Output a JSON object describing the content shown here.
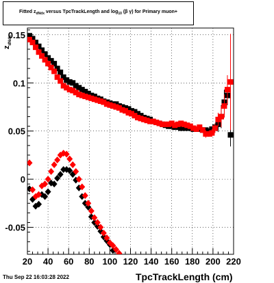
{
  "title": {
    "prefix": "Fitted  z",
    "sub1": "dNdx",
    "mid": " versus TpcTrackLength and log",
    "sub2": "10",
    "suffix": " (β γ) for Primary muon+"
  },
  "y_title": {
    "main": "z",
    "sub": "dNdx"
  },
  "x_title": "TpcTrackLength (cm)",
  "date_stamp": "Thu Sep 22 16:03:28 2022",
  "colors": {
    "black_series": "#000000",
    "red_series": "#ff0000"
  },
  "chart_data": {
    "type": "scatter",
    "xlim": [
      20,
      220
    ],
    "ylim": [
      -0.078,
      0.157
    ],
    "grid": true,
    "x_ticks": [
      20,
      40,
      60,
      80,
      100,
      120,
      140,
      160,
      180,
      200,
      220
    ],
    "x_tick_labels": [
      "20",
      "40",
      "60",
      "80",
      "100",
      "120",
      "140",
      "160",
      "180",
      "200",
      "220"
    ],
    "y_ticks": [
      0.15,
      0.1,
      0.05,
      0,
      -0.05
    ],
    "y_tick_labels": [
      "0.15",
      "0.1",
      "0.05",
      "0",
      "-0.05"
    ],
    "series": [
      {
        "marker": "square",
        "color": "#000000",
        "points": [
          [
            22,
            0.149
          ],
          [
            25,
            0.146
          ],
          [
            28,
            0.142
          ],
          [
            31,
            0.138
          ],
          [
            34,
            0.134
          ],
          [
            37,
            0.13
          ],
          [
            40,
            0.126
          ],
          [
            43,
            0.123
          ],
          [
            46,
            0.12
          ],
          [
            49,
            0.115
          ],
          [
            52,
            0.111
          ],
          [
            55,
            0.106
          ],
          [
            58,
            0.103
          ],
          [
            61,
            0.101
          ],
          [
            64,
            0.1
          ],
          [
            67,
            0.097
          ],
          [
            70,
            0.095
          ],
          [
            73,
            0.093
          ],
          [
            76,
            0.091
          ],
          [
            79,
            0.089
          ],
          [
            82,
            0.087
          ],
          [
            85,
            0.086
          ],
          [
            88,
            0.084
          ],
          [
            91,
            0.083
          ],
          [
            94,
            0.081
          ],
          [
            97,
            0.08
          ],
          [
            100,
            0.079
          ],
          [
            103,
            0.078
          ],
          [
            106,
            0.078
          ],
          [
            109,
            0.076
          ],
          [
            112,
            0.075
          ],
          [
            115,
            0.074
          ],
          [
            118,
            0.073
          ],
          [
            121,
            0.071
          ],
          [
            124,
            0.07
          ],
          [
            127,
            0.068
          ],
          [
            130,
            0.066
          ],
          [
            133,
            0.064
          ],
          [
            136,
            0.063
          ],
          [
            139,
            0.062
          ],
          [
            142,
            0.06
          ],
          [
            145,
            0.059
          ],
          [
            148,
            0.058
          ],
          [
            151,
            0.057
          ],
          [
            154,
            0.056
          ],
          [
            157,
            0.055
          ],
          [
            160,
            0.055
          ],
          [
            163,
            0.054
          ],
          [
            166,
            0.054
          ],
          [
            169,
            0.053
          ],
          [
            172,
            0.053
          ],
          [
            175,
            0.053
          ],
          [
            178,
            0.053
          ],
          [
            181,
            0.052
          ],
          [
            184,
            0.052
          ],
          [
            187,
            0.052
          ],
          [
            190,
            0.051
          ],
          [
            193,
            0.051
          ],
          [
            196,
            0.05
          ],
          [
            199,
            0.052
          ],
          [
            202,
            0.054
          ],
          [
            205,
            0.057
          ],
          [
            208,
            0.065
          ],
          [
            211,
            0.08
          ],
          [
            214,
            0.087
          ],
          [
            217,
            0.046
          ]
        ],
        "errors": [
          [
            202,
            0.004
          ],
          [
            205,
            0.008
          ],
          [
            208,
            0.012
          ],
          [
            211,
            0.013
          ],
          [
            214,
            0.01
          ],
          [
            217,
            0.012
          ]
        ]
      },
      {
        "marker": "square",
        "color": "#ff0000",
        "points": [
          [
            22,
            0.145
          ],
          [
            25,
            0.142
          ],
          [
            28,
            0.137
          ],
          [
            31,
            0.132
          ],
          [
            34,
            0.128
          ],
          [
            37,
            0.124
          ],
          [
            40,
            0.12
          ],
          [
            43,
            0.116
          ],
          [
            46,
            0.112
          ],
          [
            49,
            0.106
          ],
          [
            52,
            0.102
          ],
          [
            55,
            0.097
          ],
          [
            58,
            0.095
          ],
          [
            61,
            0.093
          ],
          [
            64,
            0.092
          ],
          [
            67,
            0.09
          ],
          [
            70,
            0.088
          ],
          [
            73,
            0.087
          ],
          [
            76,
            0.086
          ],
          [
            79,
            0.085
          ],
          [
            82,
            0.084
          ],
          [
            85,
            0.083
          ],
          [
            88,
            0.082
          ],
          [
            91,
            0.081
          ],
          [
            94,
            0.08
          ],
          [
            97,
            0.078
          ],
          [
            100,
            0.077
          ],
          [
            103,
            0.076
          ],
          [
            106,
            0.075
          ],
          [
            109,
            0.074
          ],
          [
            112,
            0.072
          ],
          [
            115,
            0.071
          ],
          [
            118,
            0.069
          ],
          [
            121,
            0.068
          ],
          [
            124,
            0.066
          ],
          [
            127,
            0.064
          ],
          [
            130,
            0.063
          ],
          [
            133,
            0.062
          ],
          [
            136,
            0.061
          ],
          [
            139,
            0.06
          ],
          [
            142,
            0.06
          ],
          [
            145,
            0.059
          ],
          [
            148,
            0.058
          ],
          [
            151,
            0.057
          ],
          [
            154,
            0.057
          ],
          [
            157,
            0.057
          ],
          [
            160,
            0.058
          ],
          [
            163,
            0.056
          ],
          [
            166,
            0.057
          ],
          [
            169,
            0.058
          ],
          [
            172,
            0.057
          ],
          [
            175,
            0.056
          ],
          [
            178,
            0.055
          ],
          [
            181,
            0.053
          ],
          [
            184,
            0.052
          ],
          [
            187,
            0.054
          ],
          [
            190,
            0.051
          ],
          [
            193,
            0.047
          ],
          [
            196,
            0.047
          ],
          [
            199,
            0.048
          ],
          [
            202,
            0.053
          ],
          [
            205,
            0.062
          ],
          [
            208,
            0.065
          ],
          [
            211,
            0.076
          ],
          [
            214,
            0.093
          ],
          [
            217,
            0.101
          ]
        ],
        "errors": [
          [
            190,
            0.003
          ],
          [
            193,
            0.004
          ],
          [
            196,
            0.003
          ],
          [
            199,
            0.004
          ],
          [
            202,
            0.005
          ],
          [
            205,
            0.007
          ],
          [
            208,
            0.011
          ],
          [
            211,
            0.012
          ],
          [
            214,
            0.015
          ],
          [
            217,
            0.05
          ]
        ]
      },
      {
        "marker": "diamond",
        "color": "#000000",
        "points": [
          [
            22,
            -0.01
          ],
          [
            25,
            -0.021
          ],
          [
            28,
            -0.028
          ],
          [
            31,
            -0.026
          ],
          [
            34,
            -0.016
          ],
          [
            37,
            -0.018
          ],
          [
            40,
            -0.013
          ],
          [
            43,
            -0.004
          ],
          [
            46,
            -0.005
          ],
          [
            49,
            0.001
          ],
          [
            52,
            0.005
          ],
          [
            55,
            0.01
          ],
          [
            58,
            0.01
          ],
          [
            61,
            0.009
          ],
          [
            64,
            0.005
          ],
          [
            67,
            -0.001
          ],
          [
            70,
            -0.009
          ],
          [
            73,
            -0.018
          ],
          [
            76,
            -0.025
          ],
          [
            79,
            -0.029
          ],
          [
            82,
            -0.039
          ],
          [
            85,
            -0.045
          ],
          [
            88,
            -0.049
          ],
          [
            91,
            -0.054
          ],
          [
            94,
            -0.06
          ],
          [
            97,
            -0.064
          ],
          [
            100,
            -0.068
          ],
          [
            103,
            -0.074
          ]
        ]
      },
      {
        "marker": "diamond",
        "color": "#ff0000",
        "points": [
          [
            22,
            0.017
          ],
          [
            25,
            -0.011
          ],
          [
            28,
            -0.018
          ],
          [
            31,
            -0.016
          ],
          [
            34,
            -0.007
          ],
          [
            37,
            -0.005
          ],
          [
            40,
            0.0
          ],
          [
            43,
            0.008
          ],
          [
            46,
            0.015
          ],
          [
            49,
            0.02
          ],
          [
            52,
            0.025
          ],
          [
            55,
            0.027
          ],
          [
            58,
            0.026
          ],
          [
            61,
            0.021
          ],
          [
            64,
            0.015
          ],
          [
            67,
            0.008
          ],
          [
            70,
            0.0
          ],
          [
            73,
            -0.008
          ],
          [
            76,
            -0.017
          ],
          [
            79,
            -0.025
          ],
          [
            82,
            -0.033
          ],
          [
            85,
            -0.04
          ],
          [
            88,
            -0.045
          ],
          [
            91,
            -0.05
          ],
          [
            94,
            -0.056
          ],
          [
            97,
            -0.061
          ],
          [
            100,
            -0.066
          ],
          [
            103,
            -0.069
          ],
          [
            106,
            -0.073
          ],
          [
            109,
            -0.077
          ]
        ]
      }
    ]
  }
}
